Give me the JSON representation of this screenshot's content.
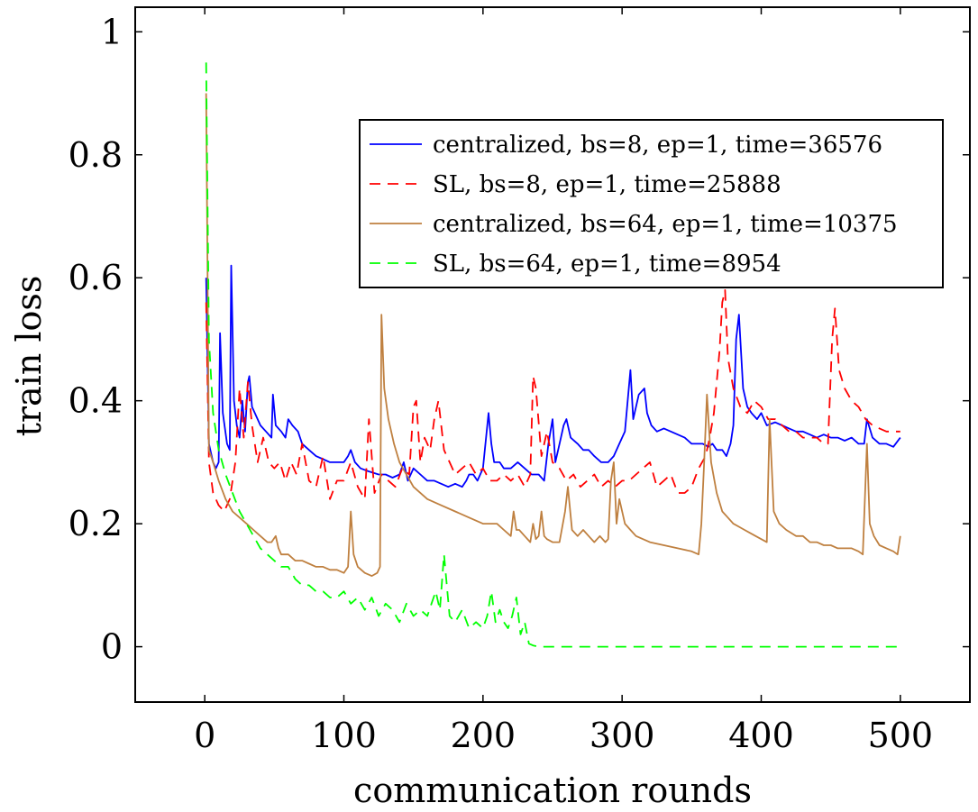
{
  "chart_data": {
    "type": "line",
    "title": "",
    "xlabel": "communication rounds",
    "ylabel": "train loss",
    "xlim": [
      -50,
      550
    ],
    "ylim": [
      -0.09,
      1.04
    ],
    "xticks": [
      0,
      100,
      200,
      300,
      400,
      500
    ],
    "yticks": [
      0,
      0.2,
      0.4,
      0.6,
      0.8,
      1
    ],
    "xtick_labels": [
      "0",
      "100",
      "200",
      "300",
      "400",
      "500"
    ],
    "ytick_labels": [
      "0",
      "0.2",
      "0.4",
      "0.6",
      "0.8",
      "1"
    ],
    "grid": false,
    "legend_position": "top-right",
    "series": [
      {
        "name": "centralized, bs=8,  ep=1,  time=36576",
        "color": "#0000ff",
        "dash": "solid",
        "x": [
          1,
          3,
          6,
          8,
          10,
          11,
          13,
          16,
          18,
          19,
          21,
          23,
          25,
          27,
          29,
          31,
          32,
          34,
          36,
          40,
          44,
          48,
          49,
          51,
          55,
          58,
          60,
          63,
          67,
          70,
          75,
          80,
          85,
          90,
          95,
          100,
          103,
          105,
          108,
          112,
          118,
          125,
          130,
          135,
          140,
          143,
          146,
          150,
          155,
          160,
          165,
          170,
          175,
          180,
          185,
          188,
          190,
          193,
          196,
          200,
          204,
          206,
          208,
          212,
          215,
          220,
          225,
          230,
          235,
          240,
          244,
          247,
          250,
          252,
          254,
          256,
          258,
          260,
          263,
          268,
          272,
          276,
          280,
          285,
          290,
          294,
          298,
          302,
          306,
          308,
          312,
          316,
          318,
          321,
          325,
          330,
          335,
          340,
          345,
          350,
          355,
          358,
          362,
          365,
          368,
          372,
          375,
          378,
          380,
          382,
          384,
          387,
          390,
          393,
          397,
          400,
          404,
          410,
          415,
          420,
          425,
          430,
          435,
          440,
          445,
          450,
          455,
          460,
          465,
          470,
          474,
          476,
          480,
          485,
          490,
          495,
          500
        ],
        "y": [
          0.6,
          0.33,
          0.3,
          0.29,
          0.3,
          0.51,
          0.38,
          0.33,
          0.32,
          0.62,
          0.4,
          0.36,
          0.34,
          0.4,
          0.35,
          0.43,
          0.44,
          0.39,
          0.38,
          0.36,
          0.35,
          0.34,
          0.41,
          0.36,
          0.35,
          0.34,
          0.37,
          0.36,
          0.35,
          0.33,
          0.32,
          0.31,
          0.305,
          0.3,
          0.3,
          0.3,
          0.31,
          0.32,
          0.3,
          0.29,
          0.285,
          0.28,
          0.28,
          0.275,
          0.28,
          0.3,
          0.27,
          0.29,
          0.28,
          0.27,
          0.27,
          0.265,
          0.26,
          0.265,
          0.26,
          0.27,
          0.28,
          0.28,
          0.27,
          0.29,
          0.38,
          0.33,
          0.3,
          0.3,
          0.29,
          0.29,
          0.3,
          0.29,
          0.28,
          0.28,
          0.27,
          0.33,
          0.37,
          0.3,
          0.32,
          0.34,
          0.36,
          0.37,
          0.34,
          0.33,
          0.32,
          0.32,
          0.31,
          0.3,
          0.3,
          0.31,
          0.33,
          0.35,
          0.45,
          0.37,
          0.41,
          0.42,
          0.38,
          0.36,
          0.35,
          0.355,
          0.35,
          0.345,
          0.34,
          0.33,
          0.33,
          0.33,
          0.325,
          0.33,
          0.32,
          0.32,
          0.31,
          0.33,
          0.36,
          0.5,
          0.54,
          0.42,
          0.39,
          0.38,
          0.37,
          0.38,
          0.36,
          0.365,
          0.36,
          0.355,
          0.35,
          0.35,
          0.345,
          0.34,
          0.345,
          0.34,
          0.34,
          0.335,
          0.34,
          0.33,
          0.33,
          0.37,
          0.34,
          0.33,
          0.33,
          0.325,
          0.34
        ]
      },
      {
        "name": "SL, bs=8,  ep=1,  time=25888",
        "color": "#ff0000",
        "dash": "dashed",
        "x": [
          1,
          3,
          6,
          10,
          14,
          18,
          22,
          25,
          28,
          31,
          34,
          38,
          42,
          46,
          50,
          54,
          58,
          62,
          66,
          70,
          75,
          80,
          85,
          90,
          95,
          100,
          105,
          110,
          115,
          118,
          122,
          127,
          132,
          137,
          142,
          147,
          150,
          152,
          155,
          158,
          162,
          165,
          168,
          172,
          176,
          180,
          185,
          190,
          195,
          200,
          205,
          210,
          215,
          220,
          225,
          230,
          234,
          236,
          238,
          242,
          246,
          250,
          255,
          260,
          265,
          270,
          275,
          280,
          285,
          290,
          295,
          300,
          305,
          310,
          315,
          320,
          325,
          330,
          335,
          340,
          345,
          350,
          355,
          360,
          363,
          366,
          370,
          372,
          374,
          376,
          380,
          385,
          390,
          395,
          400,
          405,
          410,
          415,
          420,
          425,
          430,
          435,
          440,
          445,
          448,
          451,
          453,
          456,
          460,
          465,
          470,
          475,
          480,
          485,
          490,
          495,
          500
        ],
        "y": [
          0.56,
          0.3,
          0.25,
          0.23,
          0.22,
          0.24,
          0.3,
          0.42,
          0.34,
          0.43,
          0.36,
          0.3,
          0.34,
          0.3,
          0.29,
          0.3,
          0.27,
          0.3,
          0.28,
          0.33,
          0.27,
          0.26,
          0.31,
          0.24,
          0.27,
          0.27,
          0.3,
          0.26,
          0.24,
          0.37,
          0.25,
          0.28,
          0.27,
          0.26,
          0.29,
          0.28,
          0.39,
          0.4,
          0.3,
          0.34,
          0.32,
          0.37,
          0.4,
          0.32,
          0.3,
          0.28,
          0.29,
          0.3,
          0.28,
          0.29,
          0.27,
          0.27,
          0.28,
          0.27,
          0.28,
          0.26,
          0.28,
          0.44,
          0.42,
          0.31,
          0.35,
          0.3,
          0.29,
          0.27,
          0.28,
          0.26,
          0.27,
          0.28,
          0.26,
          0.27,
          0.26,
          0.27,
          0.27,
          0.28,
          0.29,
          0.3,
          0.26,
          0.27,
          0.28,
          0.25,
          0.25,
          0.26,
          0.29,
          0.31,
          0.34,
          0.38,
          0.48,
          0.56,
          0.58,
          0.47,
          0.42,
          0.39,
          0.38,
          0.4,
          0.39,
          0.37,
          0.37,
          0.36,
          0.35,
          0.35,
          0.34,
          0.34,
          0.34,
          0.33,
          0.33,
          0.5,
          0.55,
          0.45,
          0.42,
          0.4,
          0.39,
          0.37,
          0.36,
          0.355,
          0.35,
          0.35,
          0.35
        ]
      },
      {
        "name": "centralized, bs=64,  ep=1,  time=10375",
        "color": "#bf8040",
        "dash": "solid",
        "x": [
          1,
          3,
          6,
          10,
          15,
          20,
          25,
          30,
          35,
          40,
          45,
          48,
          51,
          53,
          55,
          60,
          65,
          70,
          75,
          80,
          85,
          90,
          95,
          100,
          103,
          105,
          107,
          110,
          115,
          120,
          124,
          126,
          127,
          129,
          132,
          136,
          140,
          145,
          150,
          160,
          170,
          180,
          190,
          200,
          210,
          215,
          220,
          222,
          224,
          226,
          230,
          234,
          236,
          238,
          240,
          242,
          244,
          246,
          250,
          255,
          259,
          261,
          264,
          268,
          272,
          276,
          280,
          284,
          288,
          290,
          292,
          294,
          296,
          298,
          302,
          306,
          310,
          315,
          320,
          330,
          340,
          350,
          355,
          357,
          359,
          361,
          364,
          368,
          372,
          376,
          380,
          384,
          388,
          392,
          396,
          400,
          404,
          406,
          409,
          413,
          418,
          425,
          430,
          435,
          440,
          445,
          450,
          455,
          460,
          465,
          470,
          473,
          476,
          478,
          481,
          485,
          490,
          495,
          498,
          500
        ],
        "y": [
          0.9,
          0.32,
          0.3,
          0.27,
          0.24,
          0.22,
          0.21,
          0.2,
          0.19,
          0.18,
          0.17,
          0.17,
          0.18,
          0.16,
          0.15,
          0.15,
          0.14,
          0.14,
          0.135,
          0.13,
          0.13,
          0.125,
          0.125,
          0.12,
          0.13,
          0.22,
          0.15,
          0.13,
          0.12,
          0.115,
          0.12,
          0.13,
          0.54,
          0.42,
          0.37,
          0.33,
          0.3,
          0.28,
          0.26,
          0.24,
          0.23,
          0.22,
          0.21,
          0.2,
          0.2,
          0.19,
          0.18,
          0.22,
          0.19,
          0.19,
          0.18,
          0.17,
          0.2,
          0.175,
          0.18,
          0.22,
          0.18,
          0.175,
          0.17,
          0.17,
          0.22,
          0.26,
          0.19,
          0.18,
          0.19,
          0.18,
          0.17,
          0.18,
          0.17,
          0.175,
          0.27,
          0.3,
          0.2,
          0.24,
          0.2,
          0.19,
          0.18,
          0.175,
          0.17,
          0.165,
          0.16,
          0.155,
          0.15,
          0.2,
          0.3,
          0.41,
          0.3,
          0.25,
          0.22,
          0.21,
          0.2,
          0.195,
          0.19,
          0.185,
          0.18,
          0.175,
          0.17,
          0.37,
          0.22,
          0.2,
          0.19,
          0.18,
          0.18,
          0.17,
          0.17,
          0.165,
          0.165,
          0.16,
          0.16,
          0.16,
          0.155,
          0.15,
          0.33,
          0.2,
          0.18,
          0.165,
          0.16,
          0.155,
          0.15,
          0.18
        ]
      },
      {
        "name": "SL, bs=64,  ep=1,  time=8954",
        "color": "#00ff00",
        "dash": "dashed",
        "x": [
          1,
          3,
          6,
          10,
          15,
          20,
          25,
          30,
          35,
          40,
          45,
          50,
          55,
          60,
          65,
          70,
          75,
          80,
          85,
          90,
          95,
          100,
          105,
          110,
          115,
          120,
          125,
          130,
          135,
          140,
          145,
          150,
          155,
          160,
          163,
          166,
          169,
          172,
          174,
          176,
          180,
          185,
          190,
          195,
          200,
          203,
          206,
          209,
          212,
          215,
          218,
          221,
          224,
          227,
          230,
          233,
          236,
          240,
          250,
          260,
          280,
          300,
          350,
          400,
          450,
          500
        ],
        "y": [
          0.95,
          0.5,
          0.38,
          0.32,
          0.28,
          0.25,
          0.22,
          0.2,
          0.18,
          0.16,
          0.15,
          0.14,
          0.13,
          0.13,
          0.11,
          0.1,
          0.1,
          0.09,
          0.09,
          0.08,
          0.08,
          0.09,
          0.07,
          0.08,
          0.06,
          0.08,
          0.05,
          0.07,
          0.06,
          0.04,
          0.07,
          0.05,
          0.06,
          0.05,
          0.07,
          0.09,
          0.06,
          0.15,
          0.1,
          0.05,
          0.04,
          0.06,
          0.03,
          0.04,
          0.03,
          0.05,
          0.09,
          0.04,
          0.06,
          0.04,
          0.03,
          0.05,
          0.08,
          0.02,
          0.04,
          0.005,
          0.002,
          0.0,
          0.0,
          0.0,
          0.0,
          0.0,
          0.0,
          0.0,
          0.0,
          0.0
        ]
      }
    ]
  }
}
